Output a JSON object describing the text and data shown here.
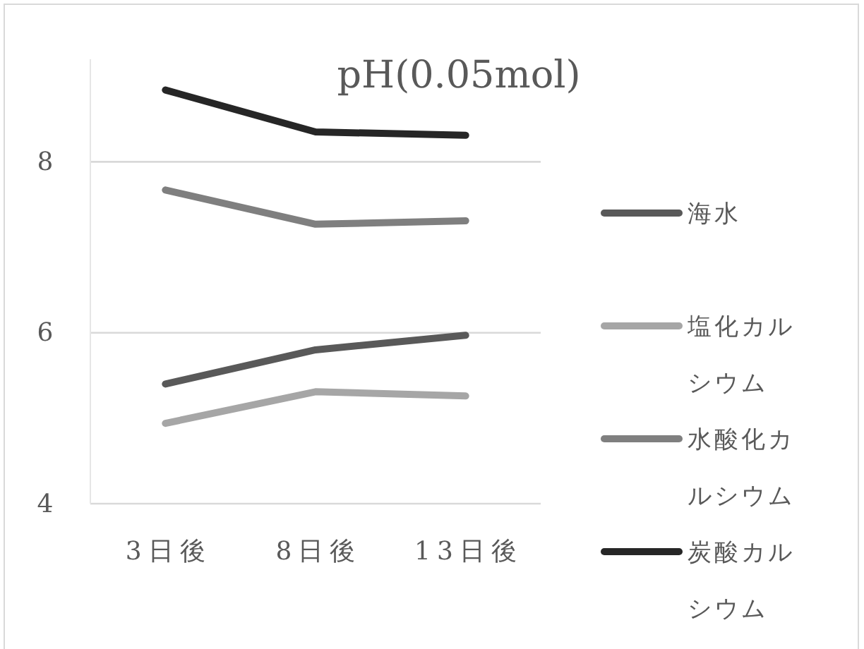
{
  "chart_data": {
    "type": "line",
    "title": "pH(0.05mol)",
    "categories": [
      "3日後",
      "8日後",
      "13日後"
    ],
    "series": [
      {
        "name": "海水",
        "color": "#595959",
        "values": [
          5.4,
          5.8,
          5.97
        ]
      },
      {
        "name": "塩化カルシウム",
        "color": "#a6a6a6",
        "values": [
          4.94,
          5.31,
          5.26
        ]
      },
      {
        "name": "水酸化カルシウム",
        "color": "#7f7f7f",
        "values": [
          7.67,
          7.27,
          7.31
        ]
      },
      {
        "name": "炭酸カルシウム",
        "color": "#262626",
        "values": [
          8.84,
          8.35,
          8.31
        ]
      }
    ],
    "ylim": [
      4,
      9.2
    ],
    "yticks": [
      4,
      6,
      8
    ],
    "grid": "y",
    "legend": "right",
    "marker": "none",
    "line_style": "solid"
  }
}
